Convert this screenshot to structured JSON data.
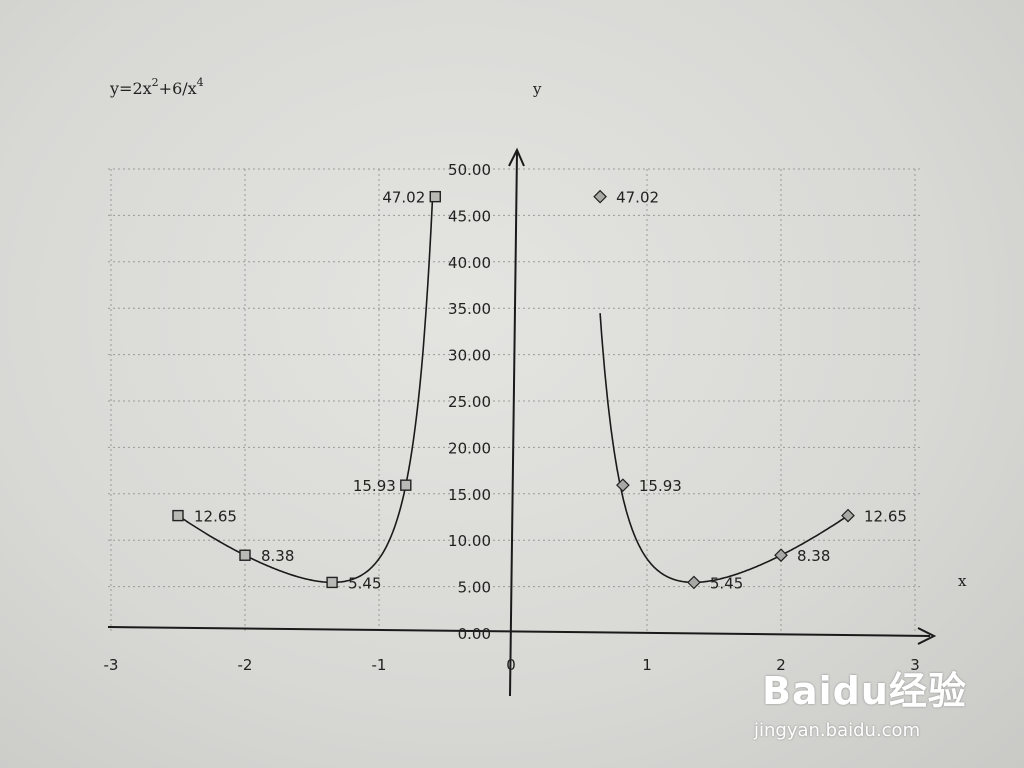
{
  "chart_data": {
    "type": "scatter",
    "title": "y=2x²+6/x⁴",
    "title_parts": {
      "base": "y=2x",
      "exp1": "2",
      "mid": "+6/x",
      "exp2": "4"
    },
    "xlabel": "x",
    "ylabel": "y",
    "xlim": [
      -3,
      3
    ],
    "ylim": [
      0,
      50
    ],
    "x_ticks": [
      "-3",
      "-2",
      "-1",
      "0",
      "1",
      "2",
      "3"
    ],
    "y_ticks": [
      "0.00",
      "5.00",
      "10.00",
      "15.00",
      "20.00",
      "25.00",
      "30.00",
      "35.00",
      "40.00",
      "45.00",
      "50.00"
    ],
    "grid": true,
    "series": [
      {
        "marker": "square",
        "points": [
          {
            "x": -2.5,
            "y": 12.65,
            "label": "12.65"
          },
          {
            "x": -2.0,
            "y": 8.38,
            "label": "8.38"
          },
          {
            "x": -1.35,
            "y": 5.45,
            "label": "5.45"
          },
          {
            "x": -0.8,
            "y": 15.93,
            "label": "15.93"
          },
          {
            "x": -0.58,
            "y": 47.02,
            "label": "47.02"
          }
        ]
      },
      {
        "marker": "diamond",
        "points": [
          {
            "x": 0.65,
            "y": 47.02,
            "label": "47.02"
          },
          {
            "x": 0.82,
            "y": 15.93,
            "label": "15.93"
          },
          {
            "x": 1.35,
            "y": 5.45,
            "label": "5.45"
          },
          {
            "x": 2.0,
            "y": 8.38,
            "label": "8.38"
          },
          {
            "x": 2.5,
            "y": 12.65,
            "label": "12.65"
          }
        ]
      }
    ]
  },
  "watermark": {
    "logo": "Baidu经验",
    "url": "jingyan.baidu.com"
  }
}
